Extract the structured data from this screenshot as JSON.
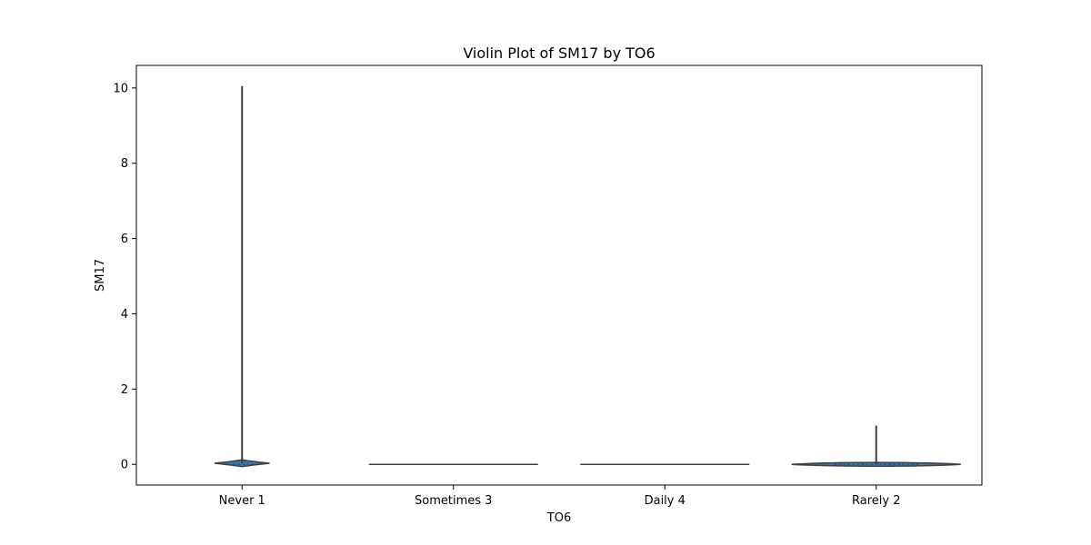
{
  "chart_data": {
    "type": "violin",
    "title": "Violin Plot of SM17 by TO6",
    "xlabel": "TO6",
    "ylabel": "SM17",
    "categories": [
      "Never 1",
      "Sometimes 3",
      "Daily 4",
      "Rarely 2"
    ],
    "ylim": [
      -0.55,
      10.6
    ],
    "yticks": [
      0,
      2,
      4,
      6,
      8,
      10
    ],
    "grid": false,
    "fill_color": "#3a78b0",
    "edge_color": "#3f3f3f",
    "violins": [
      {
        "category": "Never 1",
        "min": 0,
        "max": 10.05,
        "center": 0.03,
        "body_half_height": 0.09,
        "body_halfwidth": 0.13,
        "median": 0.0
      },
      {
        "category": "Sometimes 3",
        "min": 0,
        "max": 0,
        "center": 0.0,
        "body_half_height": 0.0,
        "body_halfwidth": 0.4,
        "median": 0.0
      },
      {
        "category": "Daily 4",
        "min": 0,
        "max": 0,
        "center": 0.0,
        "body_half_height": 0.0,
        "body_halfwidth": 0.4,
        "median": 0.0
      },
      {
        "category": "Rarely 2",
        "min": 0,
        "max": 1.03,
        "center": 0.0,
        "body_half_height": 0.05,
        "body_halfwidth": 0.4,
        "median": 0.0
      }
    ]
  }
}
